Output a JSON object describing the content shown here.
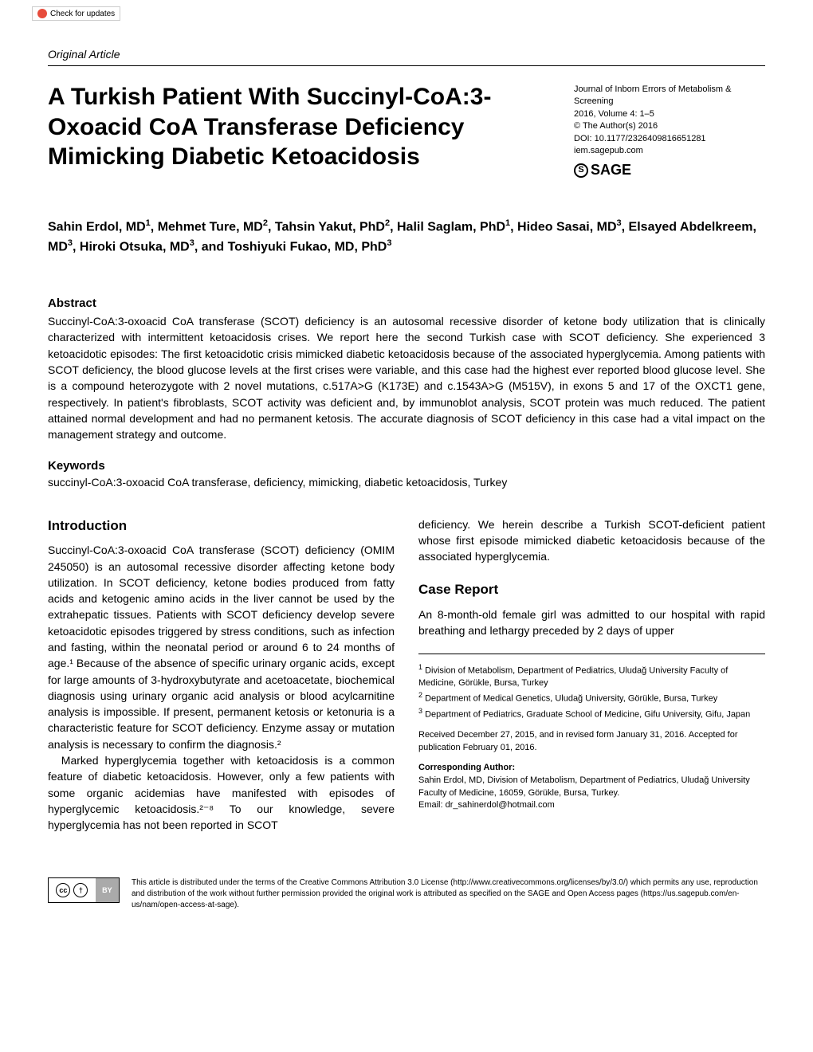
{
  "updates_badge": "Check for updates",
  "article_type": "Original Article",
  "title": "A Turkish Patient With Succinyl-CoA:3-Oxoacid CoA Transferase Deficiency Mimicking Diabetic Ketoacidosis",
  "journal": {
    "name": "Journal of Inborn Errors of Metabolism & Screening",
    "year_vol": "2016, Volume 4: 1–5",
    "copyright": "© The Author(s) 2016",
    "doi": "DOI: 10.1177/2326409816651281",
    "url": "iem.sagepub.com",
    "publisher": "SAGE"
  },
  "authors_html": "Sahin Erdol, MD<sup>1</sup>, Mehmet Ture, MD<sup>2</sup>, Tahsin Yakut, PhD<sup>2</sup>, Halil Saglam, PhD<sup>1</sup>, Hideo Sasai, MD<sup>3</sup>, Elsayed Abdelkreem, MD<sup>3</sup>, Hiroki Otsuka, MD<sup>3</sup>, and Toshiyuki Fukao, MD, PhD<sup>3</sup>",
  "abstract": {
    "heading": "Abstract",
    "text": "Succinyl-CoA:3-oxoacid CoA transferase (SCOT) deficiency is an autosomal recessive disorder of ketone body utilization that is clinically characterized with intermittent ketoacidosis crises. We report here the second Turkish case with SCOT deficiency. She experienced 3 ketoacidotic episodes: The first ketoacidotic crisis mimicked diabetic ketoacidosis because of the associated hyperglycemia. Among patients with SCOT deficiency, the blood glucose levels at the first crises were variable, and this case had the highest ever reported blood glucose level. She is a compound heterozygote with 2 novel mutations, c.517A>G (K173E) and c.1543A>G (M515V), in exons 5 and 17 of the OXCT1 gene, respectively. In patient's fibroblasts, SCOT activity was deficient and, by immunoblot analysis, SCOT protein was much reduced. The patient attained normal development and had no permanent ketosis. The accurate diagnosis of SCOT deficiency in this case had a vital impact on the management strategy and outcome."
  },
  "keywords": {
    "heading": "Keywords",
    "text": "succinyl-CoA:3-oxoacid CoA transferase, deficiency, mimicking, diabetic ketoacidosis, Turkey"
  },
  "intro": {
    "heading": "Introduction",
    "p1": "Succinyl-CoA:3-oxoacid CoA transferase (SCOT) deficiency (OMIM 245050) is an autosomal recessive disorder affecting ketone body utilization. In SCOT deficiency, ketone bodies produced from fatty acids and ketogenic amino acids in the liver cannot be used by the extrahepatic tissues. Patients with SCOT deficiency develop severe ketoacidotic episodes triggered by stress conditions, such as infection and fasting, within the neonatal period or around 6 to 24 months of age.¹ Because of the absence of specific urinary organic acids, except for large amounts of 3-hydroxybutyrate and acetoacetate, biochemical diagnosis using urinary organic acid analysis or blood acylcarnitine analysis is impossible. If present, permanent ketosis or ketonuria is a characteristic feature for SCOT deficiency. Enzyme assay or mutation analysis is necessary to confirm the diagnosis.²",
    "p2": "Marked hyperglycemia together with ketoacidosis is a common feature of diabetic ketoacidosis. However, only a few patients with some organic acidemias have manifested with episodes of hyperglycemic ketoacidosis.²⁻⁸ To our knowledge, severe hyperglycemia has not been reported in SCOT",
    "p3": "deficiency. We herein describe a Turkish SCOT-deficient patient whose first episode mimicked diabetic ketoacidosis because of the associated hyperglycemia."
  },
  "case_report": {
    "heading": "Case Report",
    "p1": "An 8-month-old female girl was admitted to our hospital with rapid breathing and lethargy preceded by 2 days of upper"
  },
  "affiliations": {
    "a1": "Division of Metabolism, Department of Pediatrics, Uludağ University Faculty of Medicine, Görükle, Bursa, Turkey",
    "a2": "Department of Medical Genetics, Uludağ University, Görükle, Bursa, Turkey",
    "a3": "Department of Pediatrics, Graduate School of Medicine, Gifu University, Gifu, Japan"
  },
  "received": "Received December 27, 2015, and in revised form January 31, 2016. Accepted for publication February 01, 2016.",
  "corresponding": {
    "heading": "Corresponding Author:",
    "text": "Sahin Erdol, MD, Division of Metabolism, Department of Pediatrics, Uludağ University Faculty of Medicine, 16059, Görükle, Bursa, Turkey.",
    "email": "Email: dr_sahinerdol@hotmail.com"
  },
  "footer": {
    "cc_by": "BY",
    "text": "This article is distributed under the terms of the Creative Commons Attribution 3.0 License (http://www.creativecommons.org/licenses/by/3.0/) which permits any use, reproduction and distribution of the work without further permission provided the original work is attributed as specified on the SAGE and Open Access pages (https://us.sagepub.com/en-us/nam/open-access-at-sage)."
  }
}
